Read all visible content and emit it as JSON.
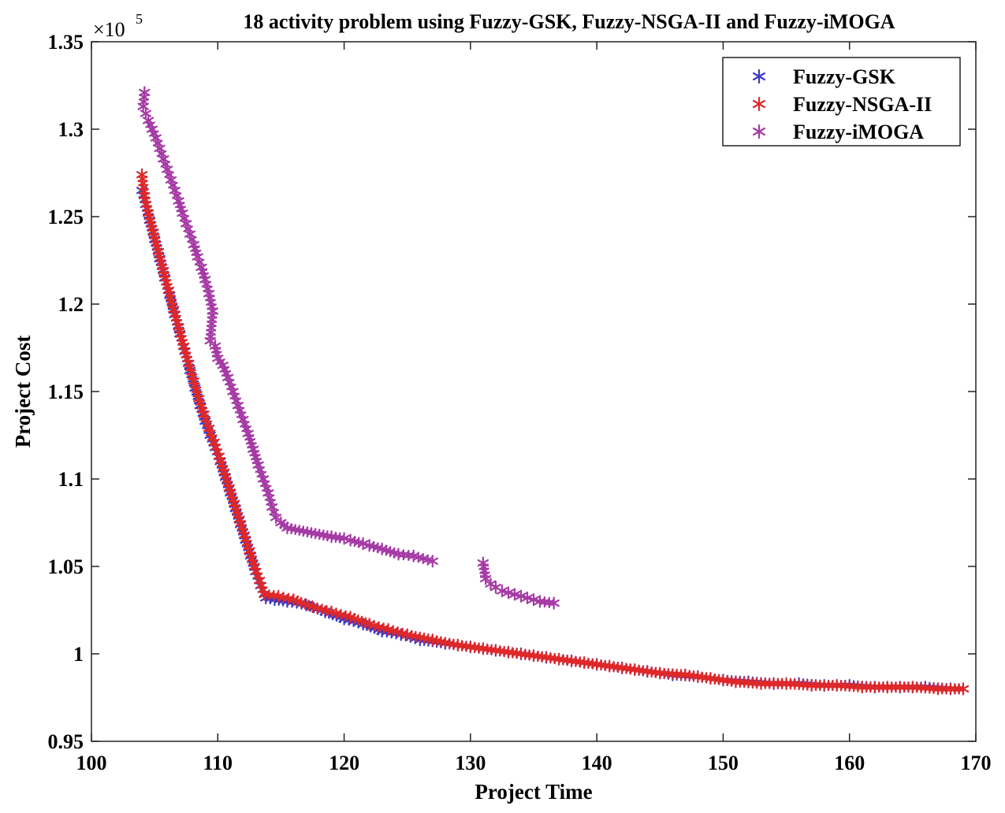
{
  "chart_data": {
    "type": "scatter",
    "title": "18 activity problem using Fuzzy-GSK, Fuzzy-NSGA-II and Fuzzy-iMOGA",
    "xlabel": "Project Time",
    "ylabel": "Project Cost",
    "xlim": [
      100,
      170
    ],
    "ylim": [
      0.95,
      1.35
    ],
    "y_exponent_label": "×10",
    "y_exponent_power": "5",
    "xticks": [
      "100",
      "110",
      "120",
      "130",
      "140",
      "150",
      "160",
      "170"
    ],
    "yticks": [
      "0.95",
      "1",
      "1.05",
      "1.1",
      "1.15",
      "1.2",
      "1.25",
      "1.3",
      "1.35"
    ],
    "grid": false,
    "legend_position": "top-right",
    "marker": "*",
    "series": [
      {
        "name": "Fuzzy-GSK",
        "color": "#3a3ac8",
        "points": [
          [
            104,
            1.265
          ],
          [
            104.3,
            1.257
          ],
          [
            104.6,
            1.248
          ],
          [
            105,
            1.237
          ],
          [
            105.4,
            1.226
          ],
          [
            105.8,
            1.215
          ],
          [
            106.2,
            1.205
          ],
          [
            106.6,
            1.194
          ],
          [
            107,
            1.183
          ],
          [
            107.4,
            1.173
          ],
          [
            107.8,
            1.162
          ],
          [
            108.2,
            1.152
          ],
          [
            108.6,
            1.142
          ],
          [
            109,
            1.133
          ],
          [
            109.4,
            1.125
          ],
          [
            109.8,
            1.118
          ],
          [
            110.2,
            1.11
          ],
          [
            110.6,
            1.101
          ],
          [
            111,
            1.092
          ],
          [
            111.4,
            1.083
          ],
          [
            111.8,
            1.074
          ],
          [
            112.2,
            1.065
          ],
          [
            112.6,
            1.056
          ],
          [
            113,
            1.047
          ],
          [
            113.4,
            1.039
          ],
          [
            113.8,
            1.032
          ],
          [
            114.5,
            1.031
          ],
          [
            115.5,
            1.03
          ],
          [
            117,
            1.028
          ],
          [
            118.5,
            1.024
          ],
          [
            120,
            1.02
          ],
          [
            121.5,
            1.017
          ],
          [
            123,
            1.013
          ],
          [
            124.5,
            1.011
          ],
          [
            126,
            1.008
          ],
          [
            128,
            1.006
          ],
          [
            130,
            1.004
          ],
          [
            132,
            1.002
          ],
          [
            134,
            1.0
          ],
          [
            136,
            0.998
          ],
          [
            138,
            0.996
          ],
          [
            140,
            0.994
          ],
          [
            142,
            0.992
          ],
          [
            144,
            0.99
          ],
          [
            146,
            0.988
          ],
          [
            148,
            0.987
          ],
          [
            150,
            0.985
          ],
          [
            152,
            0.984
          ],
          [
            154,
            0.983
          ],
          [
            156,
            0.983
          ],
          [
            158,
            0.982
          ],
          [
            160,
            0.982
          ],
          [
            162,
            0.981
          ],
          [
            164,
            0.981
          ],
          [
            166,
            0.981
          ],
          [
            168,
            0.98
          ],
          [
            169,
            0.98
          ]
        ]
      },
      {
        "name": "Fuzzy-NSGA-II",
        "color": "#e02828",
        "points": [
          [
            104,
            1.274
          ],
          [
            104.2,
            1.262
          ],
          [
            104.5,
            1.252
          ],
          [
            104.9,
            1.241
          ],
          [
            105.3,
            1.23
          ],
          [
            105.7,
            1.219
          ],
          [
            106.1,
            1.208
          ],
          [
            106.5,
            1.197
          ],
          [
            106.9,
            1.187
          ],
          [
            107.3,
            1.176
          ],
          [
            107.7,
            1.166
          ],
          [
            108.1,
            1.156
          ],
          [
            108.5,
            1.146
          ],
          [
            108.9,
            1.137
          ],
          [
            109.3,
            1.129
          ],
          [
            109.7,
            1.121
          ],
          [
            110.1,
            1.113
          ],
          [
            110.5,
            1.104
          ],
          [
            110.9,
            1.095
          ],
          [
            111.3,
            1.086
          ],
          [
            111.7,
            1.077
          ],
          [
            112.1,
            1.068
          ],
          [
            112.5,
            1.059
          ],
          [
            112.9,
            1.05
          ],
          [
            113.3,
            1.042
          ],
          [
            113.7,
            1.034
          ],
          [
            114.8,
            1.033
          ],
          [
            116,
            1.031
          ],
          [
            117.5,
            1.027
          ],
          [
            119,
            1.024
          ],
          [
            120.5,
            1.021
          ],
          [
            122,
            1.017
          ],
          [
            123.5,
            1.014
          ],
          [
            125,
            1.011
          ],
          [
            127,
            1.008
          ],
          [
            129,
            1.005
          ],
          [
            131,
            1.003
          ],
          [
            133,
            1.001
          ],
          [
            135,
            0.999
          ],
          [
            137,
            0.997
          ],
          [
            139,
            0.995
          ],
          [
            141,
            0.993
          ],
          [
            143,
            0.991
          ],
          [
            145,
            0.989
          ],
          [
            147,
            0.988
          ],
          [
            149,
            0.986
          ],
          [
            151,
            0.984
          ],
          [
            153,
            0.983
          ],
          [
            155,
            0.983
          ],
          [
            157,
            0.982
          ],
          [
            159,
            0.982
          ],
          [
            161,
            0.981
          ],
          [
            163,
            0.981
          ],
          [
            165,
            0.981
          ],
          [
            167,
            0.98
          ],
          [
            169,
            0.98
          ]
        ]
      },
      {
        "name": "Fuzzy-iMOGA",
        "color": "#a53aa5",
        "points": [
          [
            104.2,
            1.321
          ],
          [
            104.1,
            1.313
          ],
          [
            104.3,
            1.309
          ],
          [
            104.5,
            1.305
          ],
          [
            104.8,
            1.3
          ],
          [
            105.1,
            1.295
          ],
          [
            105.4,
            1.289
          ],
          [
            105.7,
            1.283
          ],
          [
            106,
            1.277
          ],
          [
            106.3,
            1.271
          ],
          [
            106.6,
            1.265
          ],
          [
            106.9,
            1.259
          ],
          [
            107.2,
            1.252
          ],
          [
            107.5,
            1.246
          ],
          [
            107.8,
            1.24
          ],
          [
            108.1,
            1.234
          ],
          [
            108.4,
            1.227
          ],
          [
            108.7,
            1.221
          ],
          [
            109,
            1.214
          ],
          [
            109.3,
            1.206
          ],
          [
            109.6,
            1.196
          ],
          [
            109.4,
            1.179
          ],
          [
            109.8,
            1.176
          ],
          [
            110,
            1.169
          ],
          [
            110.4,
            1.165
          ],
          [
            110.8,
            1.158
          ],
          [
            111.2,
            1.15
          ],
          [
            111.6,
            1.142
          ],
          [
            112,
            1.134
          ],
          [
            112.4,
            1.126
          ],
          [
            112.8,
            1.117
          ],
          [
            113.2,
            1.108
          ],
          [
            113.6,
            1.1
          ],
          [
            114,
            1.092
          ],
          [
            114.3,
            1.084
          ],
          [
            114.6,
            1.078
          ],
          [
            115,
            1.075
          ],
          [
            115.5,
            1.072
          ],
          [
            119,
            1.067
          ],
          [
            120,
            1.066
          ],
          [
            120.5,
            1.065
          ],
          [
            121.5,
            1.063
          ],
          [
            122,
            1.062
          ],
          [
            123,
            1.06
          ],
          [
            124.3,
            1.057
          ],
          [
            125.5,
            1.056
          ],
          [
            127,
            1.053
          ],
          [
            131,
            1.052
          ],
          [
            131.2,
            1.043
          ],
          [
            131.6,
            1.04
          ],
          [
            132,
            1.038
          ],
          [
            132.5,
            1.036
          ],
          [
            133,
            1.035
          ],
          [
            133.5,
            1.034
          ],
          [
            134,
            1.033
          ],
          [
            134.5,
            1.032
          ],
          [
            135,
            1.031
          ],
          [
            135.5,
            1.03
          ],
          [
            136.6,
            1.029
          ]
        ]
      }
    ]
  }
}
